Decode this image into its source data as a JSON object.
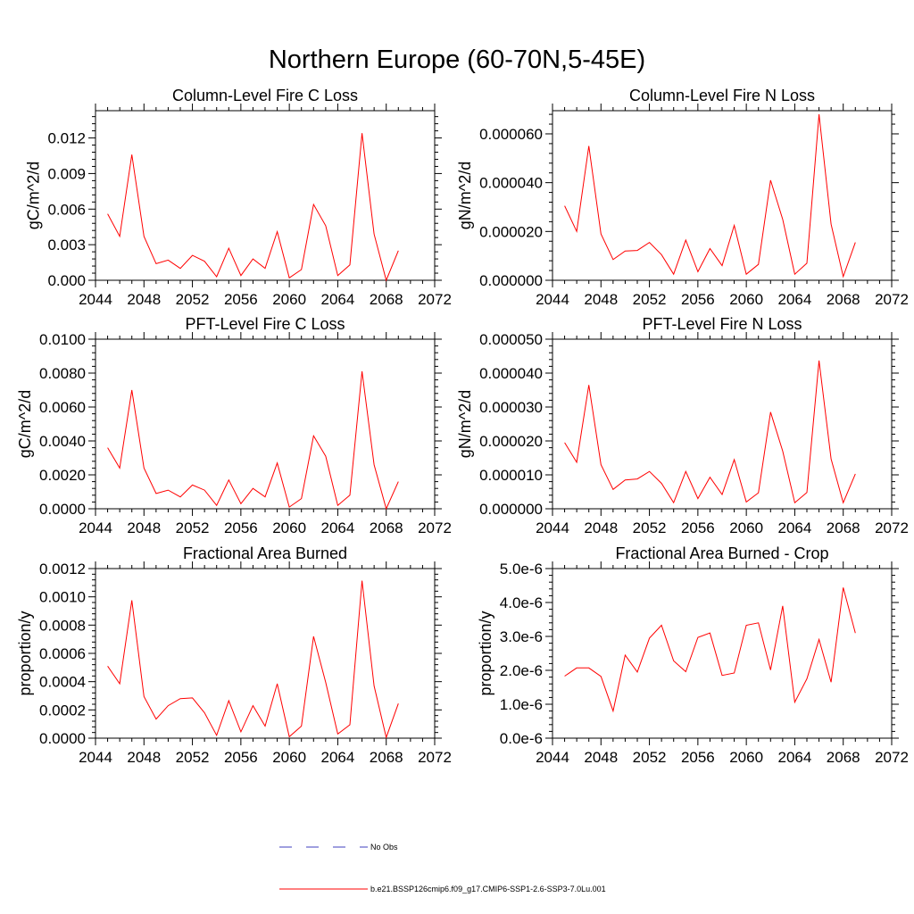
{
  "figure_title": "Northern Europe (60-70N,5-45E)",
  "colors": {
    "model_line": "#ff0000",
    "obs_line": "#3f3fbf",
    "axes": "#000000"
  },
  "legend": [
    {
      "label": "No Obs",
      "style": "dashed",
      "color": "#3f3fbf"
    },
    {
      "label": "b.e21.BSSP126cmip6.f09_g17.CMIP6-SSP1-2.6-SSP3-7.0Lu.001",
      "style": "solid",
      "color": "#ff0000"
    }
  ],
  "chart_data": [
    {
      "type": "line",
      "title": "Column-Level Fire C Loss",
      "ylabel": "gC/m^2/d",
      "xlim": [
        2044,
        2072
      ],
      "x_ticks": [
        2044,
        2048,
        2052,
        2056,
        2060,
        2064,
        2068,
        2072
      ],
      "ylim": [
        0,
        0.0143
      ],
      "y_ticks": [
        "0.000",
        "0.003",
        "0.006",
        "0.009",
        "0.012"
      ],
      "y_tick_values": [
        0,
        0.003,
        0.006,
        0.009,
        0.012
      ],
      "x": [
        2045,
        2046,
        2047,
        2048,
        2049,
        2050,
        2051,
        2052,
        2053,
        2054,
        2055,
        2056,
        2057,
        2058,
        2059,
        2060,
        2061,
        2062,
        2063,
        2064,
        2065,
        2066,
        2067,
        2068,
        2069
      ],
      "series": [
        {
          "values": [
            0.0056,
            0.0037,
            0.0106,
            0.0037,
            0.0014,
            0.0017,
            0.001,
            0.0021,
            0.0016,
            0.0003,
            0.0027,
            0.0004,
            0.0018,
            0.001,
            0.0041,
            0.0002,
            0.0009,
            0.0064,
            0.0046,
            0.0004,
            0.0013,
            0.0124,
            0.0039,
            0.0,
            0.0025
          ]
        }
      ]
    },
    {
      "type": "line",
      "title": "Column-Level Fire N Loss",
      "ylabel": "gN/m^2/d",
      "xlim": [
        2044,
        2072
      ],
      "x_ticks": [
        2044,
        2048,
        2052,
        2056,
        2060,
        2064,
        2068,
        2072
      ],
      "ylim": [
        0,
        6.95e-05
      ],
      "y_ticks": [
        "0.000000",
        "0.000020",
        "0.000040",
        "0.000060"
      ],
      "y_tick_values": [
        0,
        2e-05,
        4e-05,
        6e-05
      ],
      "x": [
        2045,
        2046,
        2047,
        2048,
        2049,
        2050,
        2051,
        2052,
        2053,
        2054,
        2055,
        2056,
        2057,
        2058,
        2059,
        2060,
        2061,
        2062,
        2063,
        2064,
        2065,
        2066,
        2067,
        2068,
        2069
      ],
      "series": [
        {
          "values": [
            3.05e-05,
            2e-05,
            5.5e-05,
            1.9e-05,
            8.5e-06,
            1.2e-05,
            1.22e-05,
            1.55e-05,
            1.05e-05,
            2.5e-06,
            1.65e-05,
            3.5e-06,
            1.3e-05,
            6e-06,
            2.25e-05,
            2.5e-06,
            6.5e-06,
            4.1e-05,
            2.5e-05,
            2.5e-06,
            7e-06,
            6.8e-05,
            2.3e-05,
            1.5e-06,
            1.55e-05
          ]
        }
      ]
    },
    {
      "type": "line",
      "title": "PFT-Level Fire C Loss",
      "ylabel": "gC/m^2/d",
      "xlim": [
        2044,
        2072
      ],
      "x_ticks": [
        2044,
        2048,
        2052,
        2056,
        2060,
        2064,
        2068,
        2072
      ],
      "ylim": [
        0,
        0.01
      ],
      "y_ticks": [
        "0.0000",
        "0.0020",
        "0.0040",
        "0.0060",
        "0.0080",
        "0.0100"
      ],
      "y_tick_values": [
        0,
        0.002,
        0.004,
        0.006,
        0.008,
        0.01
      ],
      "x": [
        2045,
        2046,
        2047,
        2048,
        2049,
        2050,
        2051,
        2052,
        2053,
        2054,
        2055,
        2056,
        2057,
        2058,
        2059,
        2060,
        2061,
        2062,
        2063,
        2064,
        2065,
        2066,
        2067,
        2068,
        2069
      ],
      "series": [
        {
          "values": [
            0.0036,
            0.0024,
            0.007,
            0.0024,
            0.0009,
            0.0011,
            0.0007,
            0.0014,
            0.0011,
            0.0002,
            0.0017,
            0.0003,
            0.0012,
            0.0007,
            0.0027,
            0.0001,
            0.0006,
            0.0043,
            0.0031,
            0.0002,
            0.0008,
            0.0081,
            0.0026,
            0.0,
            0.0016
          ]
        }
      ]
    },
    {
      "type": "line",
      "title": "PFT-Level Fire N Loss",
      "ylabel": "gN/m^2/d",
      "xlim": [
        2044,
        2072
      ],
      "x_ticks": [
        2044,
        2048,
        2052,
        2056,
        2060,
        2064,
        2068,
        2072
      ],
      "ylim": [
        0,
        5e-05
      ],
      "y_ticks": [
        "0.000000",
        "0.000010",
        "0.000020",
        "0.000030",
        "0.000040",
        "0.000050"
      ],
      "y_tick_values": [
        0,
        1e-05,
        2e-05,
        3e-05,
        4e-05,
        5e-05
      ],
      "x": [
        2045,
        2046,
        2047,
        2048,
        2049,
        2050,
        2051,
        2052,
        2053,
        2054,
        2055,
        2056,
        2057,
        2058,
        2059,
        2060,
        2061,
        2062,
        2063,
        2064,
        2065,
        2066,
        2067,
        2068,
        2069
      ],
      "series": [
        {
          "values": [
            1.95e-05,
            1.37e-05,
            3.65e-05,
            1.3e-05,
            5.7e-06,
            8.5e-06,
            8.8e-06,
            1.1e-05,
            7.5e-06,
            1.8e-06,
            1.1e-05,
            3e-06,
            9.3e-06,
            4.2e-06,
            1.45e-05,
            2e-06,
            4.7e-06,
            2.85e-05,
            1.7e-05,
            1.8e-06,
            4.8e-06,
            4.37e-05,
            1.47e-05,
            1.8e-06,
            1.03e-05
          ]
        }
      ]
    },
    {
      "type": "line",
      "title": "Fractional Area Burned",
      "ylabel": "proportion/y",
      "xlim": [
        2044,
        2072
      ],
      "x_ticks": [
        2044,
        2048,
        2052,
        2056,
        2060,
        2064,
        2068,
        2072
      ],
      "ylim": [
        0,
        0.0012
      ],
      "y_ticks": [
        "0.0000",
        "0.0002",
        "0.0004",
        "0.0006",
        "0.0008",
        "0.0010",
        "0.0012"
      ],
      "y_tick_values": [
        0,
        0.0002,
        0.0004,
        0.0006,
        0.0008,
        0.001,
        0.0012
      ],
      "x": [
        2045,
        2046,
        2047,
        2048,
        2049,
        2050,
        2051,
        2052,
        2053,
        2054,
        2055,
        2056,
        2057,
        2058,
        2059,
        2060,
        2061,
        2062,
        2063,
        2064,
        2065,
        2066,
        2067,
        2068,
        2069
      ],
      "series": [
        {
          "values": [
            0.00051,
            0.000385,
            0.000975,
            0.000295,
            0.000135,
            0.00023,
            0.00028,
            0.000285,
            0.00018,
            2e-05,
            0.000265,
            4.5e-05,
            0.00023,
            8.5e-05,
            0.000385,
            1e-05,
            8.5e-05,
            0.00072,
            0.000395,
            3e-05,
            9.5e-05,
            0.001115,
            0.00037,
            5e-06,
            0.000245
          ]
        }
      ]
    },
    {
      "type": "line",
      "title": "Fractional Area Burned - Crop",
      "ylabel": "proportion/y",
      "xlim": [
        2044,
        2072
      ],
      "x_ticks": [
        2044,
        2048,
        2052,
        2056,
        2060,
        2064,
        2068,
        2072
      ],
      "ylim": [
        0,
        5e-06
      ],
      "y_ticks": [
        "0.0e-6",
        "1.0e-6",
        "2.0e-6",
        "3.0e-6",
        "4.0e-6",
        "5.0e-6"
      ],
      "y_tick_values": [
        0,
        1e-06,
        2e-06,
        3e-06,
        4e-06,
        5e-06
      ],
      "x": [
        2045,
        2046,
        2047,
        2048,
        2049,
        2050,
        2051,
        2052,
        2053,
        2054,
        2055,
        2056,
        2057,
        2058,
        2059,
        2060,
        2061,
        2062,
        2063,
        2064,
        2065,
        2066,
        2067,
        2068,
        2069
      ],
      "series": [
        {
          "values": [
            1.83e-06,
            2.07e-06,
            2.07e-06,
            1.82e-06,
            8e-07,
            2.45e-06,
            1.95e-06,
            2.95e-06,
            3.33e-06,
            2.28e-06,
            1.96e-06,
            2.97e-06,
            3.1e-06,
            1.85e-06,
            1.92e-06,
            3.33e-06,
            3.4e-06,
            2.01e-06,
            3.9e-06,
            1.06e-06,
            1.75e-06,
            2.91e-06,
            1.65e-06,
            4.44e-06,
            3.1e-06
          ]
        }
      ]
    }
  ]
}
